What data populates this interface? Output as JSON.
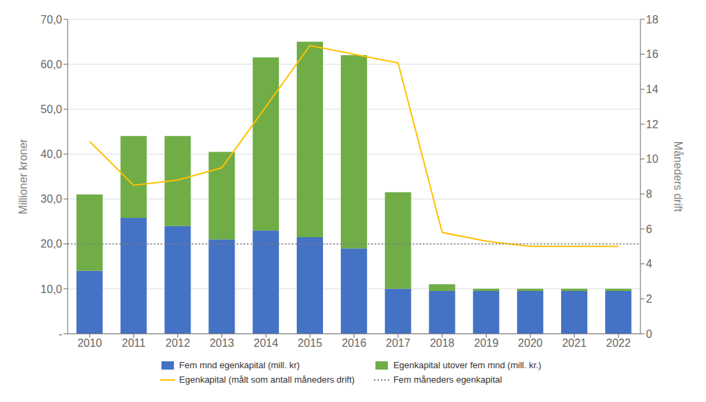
{
  "chart_data": {
    "type": "bar",
    "stacked": true,
    "categories": [
      "2010",
      "2011",
      "2012",
      "2013",
      "2014",
      "2015",
      "2016",
      "2017",
      "2018",
      "2019",
      "2020",
      "2021",
      "2022"
    ],
    "series": [
      {
        "name": "Fem mnd egenkapital (mill. kr)",
        "color": "#4472C4",
        "values": [
          14.0,
          25.8,
          24.0,
          21.0,
          23.0,
          21.5,
          19.0,
          10.0,
          9.5,
          9.5,
          9.5,
          9.5,
          9.5
        ]
      },
      {
        "name": "Egenkapital utover fem mnd (mill. kr.)",
        "color": "#70AD47",
        "values": [
          17.0,
          18.2,
          20.0,
          19.5,
          38.5,
          43.5,
          43.0,
          21.5,
          1.5,
          0.5,
          0.5,
          0.5,
          0.5
        ]
      },
      {
        "name": "Egenkapital (målt som antall måneders drift)",
        "type": "line",
        "axis": "y2",
        "color": "#FFC000",
        "values": [
          11.0,
          8.5,
          8.8,
          9.5,
          13.0,
          16.5,
          16.0,
          15.5,
          5.8,
          5.3,
          5.0,
          5.0,
          5.0
        ]
      }
    ],
    "reference_lines": [
      {
        "name": "Fem måneders egenkapital",
        "value": 20.0,
        "color": "#7F7F7F",
        "line_style": "dotted"
      }
    ],
    "ylabel": "Millioner kroner",
    "y2label": "Måneders drift",
    "ylim": [
      0,
      70
    ],
    "yticks": [
      {
        "value": 0,
        "label": "-"
      },
      {
        "value": 10,
        "label": "10,0"
      },
      {
        "value": 20,
        "label": "20,0"
      },
      {
        "value": 30,
        "label": "30,0"
      },
      {
        "value": 40,
        "label": "40,0"
      },
      {
        "value": 50,
        "label": "50,0"
      },
      {
        "value": 60,
        "label": "60,0"
      },
      {
        "value": 70,
        "label": "70,0"
      }
    ],
    "y2lim": [
      0,
      18
    ],
    "y2ticks": [
      0,
      2,
      4,
      6,
      8,
      10,
      12,
      14,
      16,
      18
    ],
    "grid": true,
    "legend": "bottom"
  }
}
